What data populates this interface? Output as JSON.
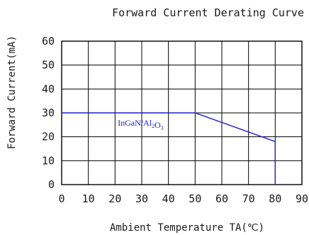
{
  "chart_data": {
    "type": "line",
    "title": "Forward Current Derating Curve",
    "xlabel": "Ambient Temperature TA(℃)",
    "ylabel": "Forward Current(mA)",
    "xlim": [
      0,
      90
    ],
    "ylim": [
      0,
      60
    ],
    "x_ticks": [
      0,
      10,
      20,
      30,
      40,
      50,
      60,
      70,
      80,
      90
    ],
    "y_ticks": [
      0,
      10,
      20,
      30,
      40,
      50,
      60
    ],
    "grid": true,
    "series": [
      {
        "name": "InGaN/Al2O3",
        "color": "#1f1fd1",
        "points": [
          {
            "x": 0,
            "y": 30
          },
          {
            "x": 50,
            "y": 30
          },
          {
            "x": 80,
            "y": 18
          },
          {
            "x": 80,
            "y": 0
          }
        ]
      }
    ]
  }
}
